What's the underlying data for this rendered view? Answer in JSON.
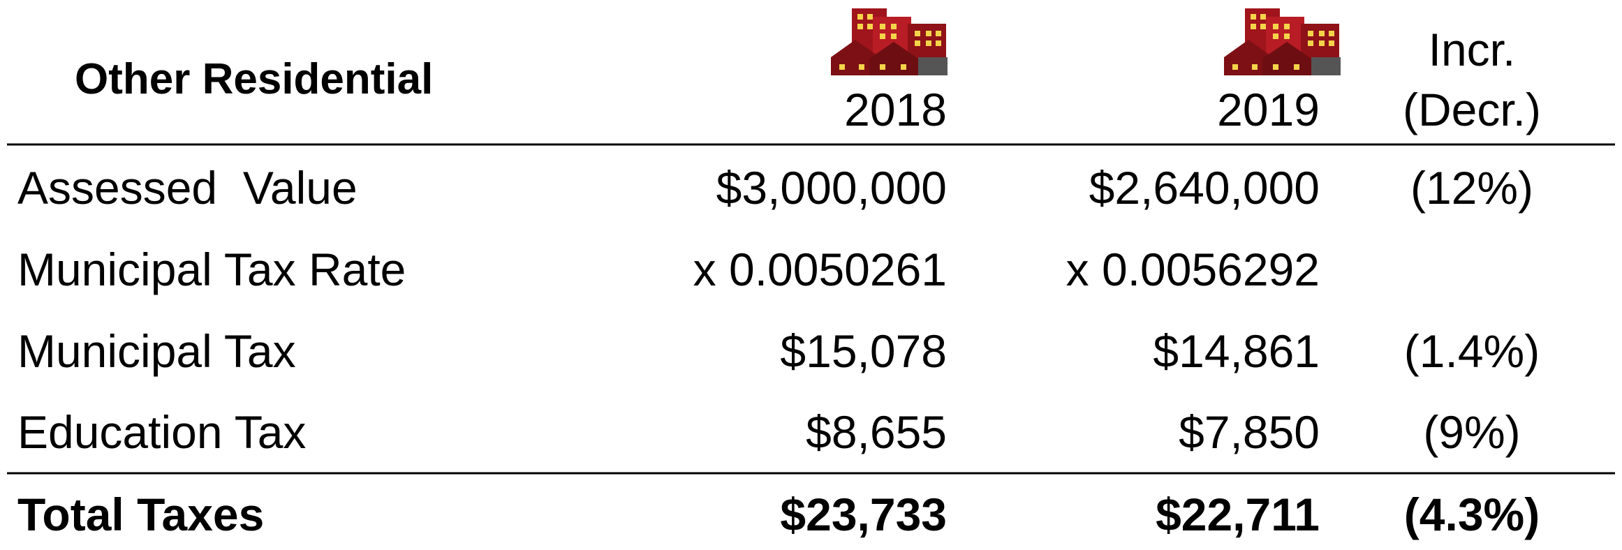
{
  "table": {
    "title": "Other Residential",
    "columns": [
      "2018",
      "2019",
      "Incr.\n(Decr.)"
    ],
    "column_lines": [
      [
        "2018"
      ],
      [
        "2019"
      ],
      [
        "Incr.",
        "(Decr.)"
      ]
    ],
    "rows": [
      {
        "label": "Assessed  Value",
        "cells": [
          "$3,000,000",
          "$2,640,000",
          "(12%)"
        ]
      },
      {
        "label": "Municipal Tax Rate",
        "cells": [
          "x 0.0050261",
          "x 0.0056292"
        ]
      },
      {
        "label": "Municipal Tax",
        "cells": [
          "$15,078",
          "$14,861",
          "(1.4%)"
        ]
      },
      {
        "label": "Education Tax",
        "cells": [
          "$8,655",
          "$7,850",
          "(9%)"
        ]
      },
      {
        "label": "Total Taxes",
        "cells": [
          "$23,733",
          "$22,711",
          "(4.3%)"
        ]
      }
    ]
  }
}
